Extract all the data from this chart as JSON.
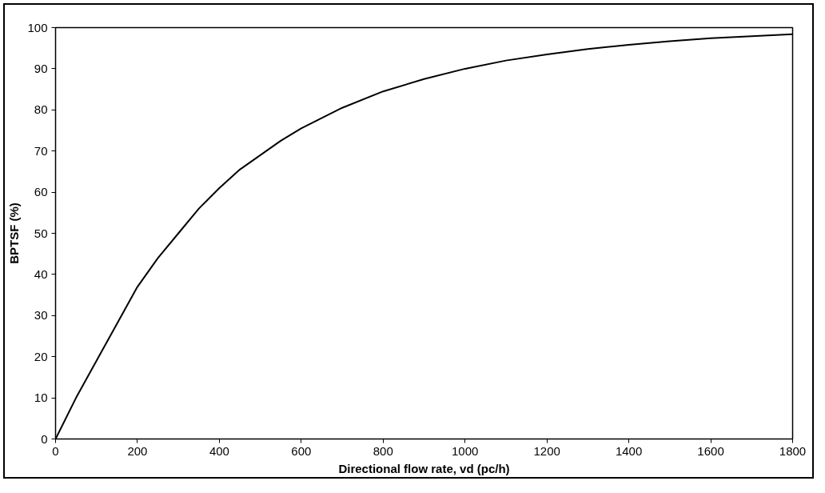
{
  "chart_data": {
    "type": "line",
    "xlabel": "Directional flow rate, vd (pc/h)",
    "ylabel": "BPTSF (%)",
    "x": [
      0,
      50,
      100,
      150,
      200,
      250,
      300,
      350,
      400,
      450,
      500,
      550,
      600,
      700,
      800,
      900,
      1000,
      1100,
      1200,
      1300,
      1400,
      1500,
      1600,
      1700,
      1800
    ],
    "series": [
      {
        "color": "#000000",
        "values": [
          0,
          10,
          19,
          28,
          37,
          44,
          50,
          56,
          61,
          65.5,
          69,
          72.5,
          75.5,
          80.5,
          84.5,
          87.5,
          90,
          92,
          93.5,
          94.8,
          95.8,
          96.7,
          97.4,
          97.9,
          98.4
        ]
      }
    ],
    "xlim": [
      0,
      1800
    ],
    "ylim": [
      0,
      100
    ],
    "xticks": [
      0,
      200,
      400,
      600,
      800,
      1000,
      1200,
      1400,
      1600,
      1800
    ],
    "yticks": [
      0,
      10,
      20,
      30,
      40,
      50,
      60,
      70,
      80,
      90,
      100
    ],
    "grid": false,
    "marker": "none",
    "line_style": "solid"
  }
}
